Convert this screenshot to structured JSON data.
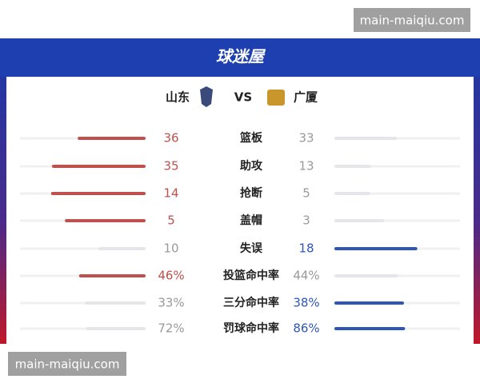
{
  "watermark_top": "main-maiqiu.com",
  "watermark_bottom": "main-maiqiu.com",
  "header": {
    "brand": "球迷屋"
  },
  "teams": {
    "home": "山东",
    "vs": "VS",
    "away": "广厦"
  },
  "rows": [
    {
      "stat": "篮板",
      "home": 36,
      "away": 33
    },
    {
      "stat": "助攻",
      "home": 35,
      "away": 13
    },
    {
      "stat": "抢断",
      "home": 14,
      "away": 5
    },
    {
      "stat": "盖帽",
      "home": 5,
      "away": 3
    },
    {
      "stat": "失误",
      "home": 10,
      "away": 18
    },
    {
      "stat": "投篮命中率",
      "home": {
        "value": 46,
        "label": "46%"
      },
      "away": {
        "value": 44,
        "label": "44%"
      }
    },
    {
      "stat": "三分命中率",
      "home": {
        "value": 33,
        "label": "33%"
      },
      "away": {
        "value": 38,
        "label": "38%"
      }
    },
    {
      "stat": "罚球命中率",
      "home": {
        "value": 72,
        "label": "72%"
      },
      "away": {
        "value": 86,
        "label": "86%"
      }
    }
  ]
}
